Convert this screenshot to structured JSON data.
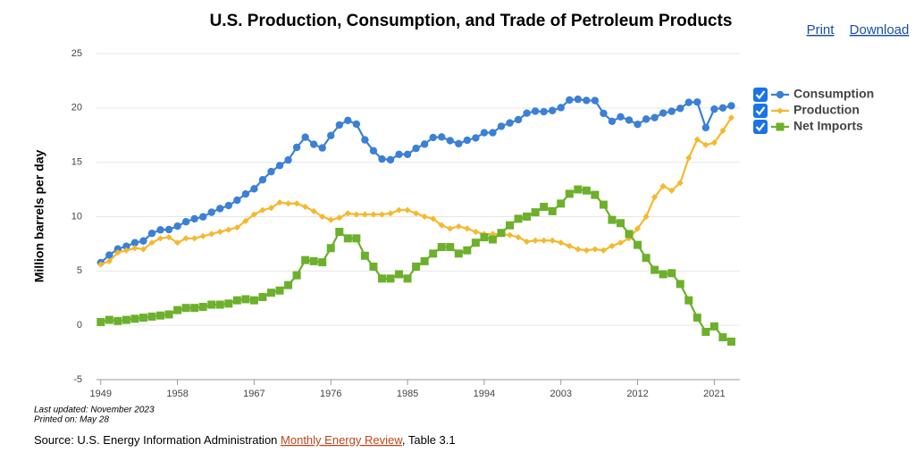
{
  "chart_data": {
    "type": "line",
    "title": "U.S. Production, Consumption, and Trade of Petroleum Products",
    "ylabel": "Million barrels per day",
    "x": [
      1949,
      1950,
      1951,
      1952,
      1953,
      1954,
      1955,
      1956,
      1957,
      1958,
      1959,
      1960,
      1961,
      1962,
      1963,
      1964,
      1965,
      1966,
      1967,
      1968,
      1969,
      1970,
      1971,
      1972,
      1973,
      1974,
      1975,
      1976,
      1977,
      1978,
      1979,
      1980,
      1981,
      1982,
      1983,
      1984,
      1985,
      1986,
      1987,
      1988,
      1989,
      1990,
      1991,
      1992,
      1993,
      1994,
      1995,
      1996,
      1997,
      1998,
      1999,
      2000,
      2001,
      2002,
      2003,
      2004,
      2005,
      2006,
      2007,
      2008,
      2009,
      2010,
      2011,
      2012,
      2013,
      2014,
      2015,
      2016,
      2017,
      2018,
      2019,
      2020,
      2021,
      2022,
      2023
    ],
    "series": [
      {
        "name": "Consumption",
        "color": "#3b80d6",
        "marker": "circle",
        "values": [
          5.76,
          6.46,
          7.02,
          7.27,
          7.6,
          7.76,
          8.46,
          8.78,
          8.81,
          9.12,
          9.53,
          9.8,
          9.98,
          10.4,
          10.74,
          11.02,
          11.51,
          12.08,
          12.56,
          13.39,
          14.14,
          14.7,
          15.21,
          16.37,
          17.31,
          16.65,
          16.32,
          17.46,
          18.43,
          18.85,
          18.51,
          17.06,
          16.06,
          15.3,
          15.23,
          15.73,
          15.73,
          16.28,
          16.67,
          17.28,
          17.33,
          16.99,
          16.71,
          17.03,
          17.24,
          17.72,
          17.72,
          18.31,
          18.62,
          18.92,
          19.52,
          19.7,
          19.65,
          19.76,
          20.03,
          20.73,
          20.8,
          20.69,
          20.68,
          19.5,
          18.77,
          19.18,
          18.88,
          18.49,
          18.97,
          19.11,
          19.53,
          19.69,
          19.96,
          20.51,
          20.54,
          18.19,
          19.89,
          20.0,
          20.2
        ]
      },
      {
        "name": "Production",
        "color": "#f5b82e",
        "marker": "diamond",
        "values": [
          5.6,
          5.9,
          6.7,
          6.9,
          7.1,
          7.0,
          7.6,
          8.0,
          8.1,
          7.6,
          8.0,
          8.0,
          8.2,
          8.4,
          8.6,
          8.8,
          9.0,
          9.6,
          10.2,
          10.6,
          10.8,
          11.3,
          11.2,
          11.2,
          10.9,
          10.5,
          10.0,
          9.7,
          9.9,
          10.3,
          10.2,
          10.2,
          10.2,
          10.2,
          10.3,
          10.6,
          10.6,
          10.3,
          10.0,
          9.8,
          9.2,
          8.9,
          9.1,
          8.9,
          8.6,
          8.4,
          8.4,
          8.4,
          8.3,
          8.1,
          7.7,
          7.8,
          7.8,
          7.8,
          7.6,
          7.3,
          7.0,
          6.9,
          7.0,
          6.9,
          7.3,
          7.6,
          8.0,
          8.9,
          10.0,
          11.8,
          12.8,
          12.4,
          13.1,
          15.4,
          17.1,
          16.6,
          16.8,
          17.9,
          19.1
        ]
      },
      {
        "name": "Net Imports",
        "color": "#6cb02b",
        "marker": "square",
        "values": [
          0.3,
          0.5,
          0.4,
          0.5,
          0.6,
          0.7,
          0.8,
          0.9,
          1.0,
          1.4,
          1.6,
          1.6,
          1.7,
          1.9,
          1.9,
          2.0,
          2.3,
          2.4,
          2.3,
          2.6,
          3.0,
          3.2,
          3.7,
          4.6,
          6.0,
          5.9,
          5.8,
          7.1,
          8.6,
          8.0,
          8.0,
          6.4,
          5.4,
          4.3,
          4.3,
          4.7,
          4.3,
          5.4,
          5.9,
          6.6,
          7.2,
          7.2,
          6.6,
          6.9,
          7.6,
          8.1,
          7.9,
          8.5,
          9.2,
          9.8,
          10.0,
          10.4,
          10.9,
          10.5,
          11.2,
          12.1,
          12.5,
          12.4,
          12.0,
          11.1,
          9.7,
          9.4,
          8.4,
          7.4,
          6.2,
          5.1,
          4.7,
          4.8,
          3.8,
          2.3,
          0.7,
          -0.6,
          -0.1,
          -1.1,
          -1.5
        ]
      }
    ],
    "xlim": [
      1948.5,
      2024
    ],
    "xticks": [
      1949,
      1958,
      1967,
      1976,
      1985,
      1994,
      2003,
      2012,
      2021
    ],
    "ylim": [
      -5,
      25
    ],
    "yticks": [
      -5,
      0,
      5,
      10,
      15,
      20,
      25
    ],
    "grid": true,
    "legend": "right"
  },
  "links": [
    "Print",
    "Download"
  ],
  "notes": [
    "Last updated: November 2023",
    "Printed on: May 28"
  ],
  "source": {
    "prefix": "Source: U.S. Energy Information Administration",
    "link": "Monthly Energy Review",
    "suffix": ", Table 3.1"
  }
}
